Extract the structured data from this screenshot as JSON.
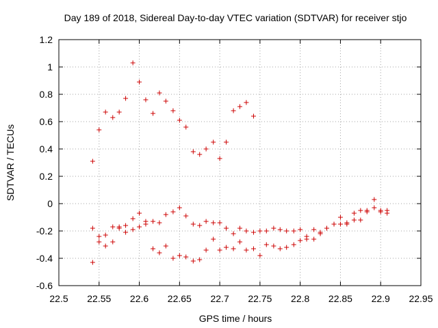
{
  "chart_data": {
    "type": "scatter",
    "title": "Day 189 of 2018, Sidereal Day-to-day VTEC variation (SDTVAR) for receiver stjo",
    "xlabel": "GPS time / hours",
    "ylabel": "SDTVAR / TECUs",
    "xlim": [
      22.5,
      22.95
    ],
    "ylim": [
      -0.6,
      1.2
    ],
    "xticks": [
      22.5,
      22.55,
      22.6,
      22.65,
      22.7,
      22.75,
      22.8,
      22.85,
      22.9,
      22.95
    ],
    "xtick_labels": [
      "22.5",
      "22.55",
      "22.6",
      "22.65",
      "22.7",
      "22.75",
      "22.8",
      "22.85",
      "22.9",
      "22.95"
    ],
    "yticks": [
      -0.6,
      -0.4,
      -0.2,
      0,
      0.2,
      0.4,
      0.6,
      0.8,
      1,
      1.2
    ],
    "ytick_labels": [
      "-0.6",
      "-0.4",
      "-0.2",
      "0",
      "0.2",
      "0.4",
      "0.6",
      "0.8",
      "1",
      "1.2"
    ],
    "grid": true,
    "marker": "+",
    "color": "#cc0000",
    "series": [
      {
        "name": "SDTVAR",
        "x": [
          22.542,
          22.55,
          22.558,
          22.567,
          22.575,
          22.583,
          22.592,
          22.6,
          22.608,
          22.617,
          22.625,
          22.633,
          22.642,
          22.65,
          22.658,
          22.667,
          22.675,
          22.683,
          22.692,
          22.7,
          22.708,
          22.717,
          22.725,
          22.733,
          22.742,
          22.542,
          22.55,
          22.558,
          22.567,
          22.575,
          22.583,
          22.592,
          22.6,
          22.608,
          22.617,
          22.625,
          22.633,
          22.642,
          22.65,
          22.658,
          22.667,
          22.675,
          22.683,
          22.692,
          22.7,
          22.708,
          22.717,
          22.725,
          22.733,
          22.742,
          22.75,
          22.758,
          22.767,
          22.775,
          22.783,
          22.792,
          22.8,
          22.808,
          22.817,
          22.825,
          22.833,
          22.842,
          22.85,
          22.858,
          22.867,
          22.875,
          22.883,
          22.892,
          22.9,
          22.908,
          22.542,
          22.55,
          22.558,
          22.567,
          22.575,
          22.583,
          22.592,
          22.6,
          22.608,
          22.617,
          22.625,
          22.633,
          22.642,
          22.65,
          22.658,
          22.667,
          22.675,
          22.683,
          22.692,
          22.7,
          22.708,
          22.717,
          22.725,
          22.733,
          22.742,
          22.75,
          22.758,
          22.767,
          22.775,
          22.783,
          22.792,
          22.8,
          22.808,
          22.817,
          22.825,
          22.833,
          22.842,
          22.85,
          22.858,
          22.867,
          22.875,
          22.883,
          22.892,
          22.9,
          22.908
        ],
        "y": [
          0.31,
          0.54,
          0.67,
          0.63,
          0.67,
          0.77,
          1.03,
          0.89,
          0.76,
          0.66,
          0.81,
          0.75,
          0.68,
          0.61,
          0.56,
          0.38,
          0.36,
          0.4,
          0.45,
          0.33,
          0.45,
          0.68,
          0.71,
          0.74,
          0.64,
          -0.18,
          -0.24,
          -0.23,
          -0.17,
          -0.17,
          -0.16,
          -0.11,
          -0.07,
          -0.13,
          -0.13,
          -0.14,
          -0.08,
          -0.06,
          -0.03,
          -0.09,
          -0.15,
          -0.16,
          -0.13,
          -0.14,
          -0.14,
          -0.18,
          -0.22,
          -0.18,
          -0.2,
          -0.21,
          -0.2,
          -0.2,
          -0.18,
          -0.19,
          -0.2,
          -0.2,
          -0.19,
          -0.24,
          -0.19,
          -0.21,
          -0.18,
          -0.15,
          -0.1,
          -0.15,
          -0.07,
          -0.05,
          -0.06,
          0.03,
          -0.05,
          -0.05,
          -0.43,
          -0.28,
          -0.31,
          -0.28,
          -0.18,
          -0.21,
          -0.19,
          -0.17,
          -0.15,
          -0.33,
          -0.36,
          -0.31,
          -0.4,
          -0.38,
          -0.39,
          -0.42,
          -0.41,
          -0.34,
          -0.26,
          -0.34,
          -0.32,
          -0.33,
          -0.28,
          -0.34,
          -0.33,
          -0.38,
          -0.3,
          -0.31,
          -0.33,
          -0.32,
          -0.3,
          -0.27,
          -0.26,
          -0.26,
          -0.22,
          -0.18,
          -0.15,
          -0.15,
          -0.14,
          -0.12,
          -0.12,
          -0.05,
          -0.03,
          -0.06,
          -0.07
        ]
      }
    ]
  }
}
